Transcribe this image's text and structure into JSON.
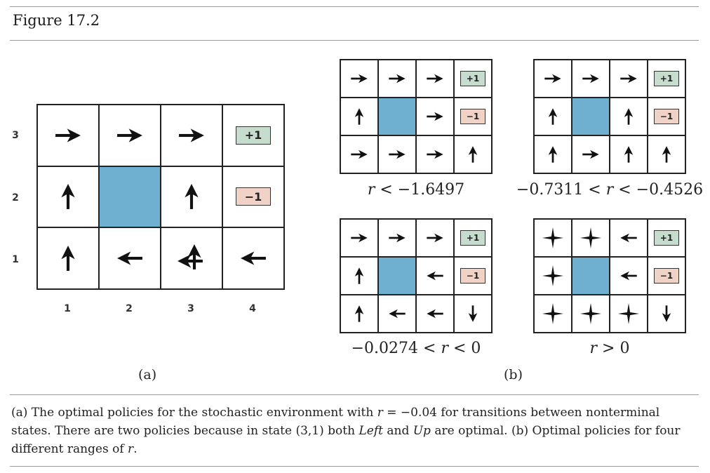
{
  "figure_title": "Figure 17.2",
  "colors": {
    "wall": "#6fafd0",
    "plus_box": "#c6dccd",
    "minus_box": "#f0d2c6",
    "arrow": "#111111"
  },
  "terminal_labels": {
    "plus": "+1",
    "minus": "−1"
  },
  "panel_a": {
    "label": "(a)",
    "row_labels": [
      "3",
      "2",
      "1"
    ],
    "col_labels": [
      "1",
      "2",
      "3",
      "4"
    ],
    "cells": [
      [
        "arrow-right",
        "arrow-right",
        "arrow-right",
        "terminal-plus"
      ],
      [
        "arrow-up",
        "wall",
        "arrow-up",
        "terminal-minus"
      ],
      [
        "arrow-up",
        "arrow-left",
        "arrow-left-up",
        "arrow-left"
      ]
    ]
  },
  "panel_b": {
    "label": "(b)",
    "grids": [
      {
        "range_parts": [
          "r",
          " < −1.6497"
        ],
        "cells": [
          [
            "arrow-right",
            "arrow-right",
            "arrow-right",
            "terminal-plus"
          ],
          [
            "arrow-up",
            "wall",
            "arrow-right",
            "terminal-minus"
          ],
          [
            "arrow-right",
            "arrow-right",
            "arrow-right",
            "arrow-up"
          ]
        ]
      },
      {
        "range_parts": [
          "−0.7311 < ",
          "r",
          " < −0.4526"
        ],
        "cells": [
          [
            "arrow-right",
            "arrow-right",
            "arrow-right",
            "terminal-plus"
          ],
          [
            "arrow-up",
            "wall",
            "arrow-up",
            "terminal-minus"
          ],
          [
            "arrow-up",
            "arrow-right",
            "arrow-up",
            "arrow-up"
          ]
        ]
      },
      {
        "range_parts": [
          "−0.0274 < ",
          "r",
          " < 0"
        ],
        "cells": [
          [
            "arrow-right",
            "arrow-right",
            "arrow-right",
            "terminal-plus"
          ],
          [
            "arrow-up",
            "wall",
            "arrow-left",
            "terminal-minus"
          ],
          [
            "arrow-up",
            "arrow-left",
            "arrow-left",
            "arrow-down"
          ]
        ]
      },
      {
        "range_parts": [
          "r",
          " > 0"
        ],
        "cells": [
          [
            "arrow-all",
            "arrow-all",
            "arrow-left",
            "terminal-plus"
          ],
          [
            "arrow-all",
            "wall",
            "arrow-left",
            "terminal-minus"
          ],
          [
            "arrow-all",
            "arrow-all",
            "arrow-all",
            "arrow-down"
          ]
        ]
      }
    ]
  },
  "caption": {
    "part1": "(a) The optimal policies for the stochastic environment with ",
    "var1": "r",
    "part2": " = −0.04 for transitions between nonterminal states. There are two policies because in state (3,1) both ",
    "left": "Left",
    "and": " and ",
    "up": "Up",
    "part3": " are optimal. (b) Optimal policies for four different ranges of ",
    "var2": "r",
    "part4": "."
  }
}
